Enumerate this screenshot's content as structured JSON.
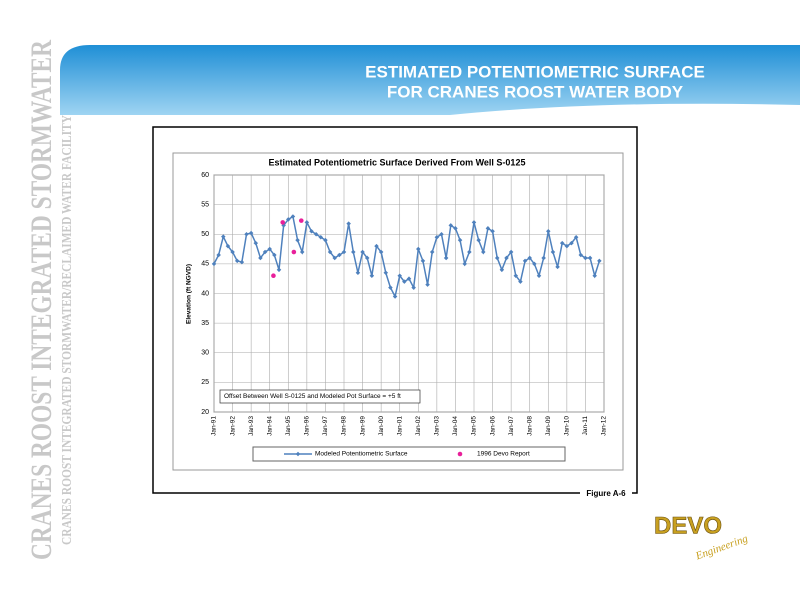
{
  "header": {
    "title_line1": "ESTIMATED POTENTIOMETRIC SURFACE",
    "title_line2": "FOR CRANES ROOST WATER BODY"
  },
  "sidebar": {
    "main": "CRANES ROOST INTEGRATED STORMWATER",
    "sub": "CRANES ROOST INTEGRATED STORMWATER/RECLAIMED WATER FACILITY"
  },
  "figure_label": "Figure A-6",
  "logo": {
    "name": "DEVO",
    "tagline": "Engineering"
  },
  "chart_data": {
    "type": "line",
    "title": "Estimated Potentiometric Surface Derived From Well S-0125",
    "y_label": "Elevation (ft NGVD)",
    "annotation": "Offset Between Well S-0125 and Modeled Pot Surface =  +5 ft",
    "xlim": [
      1991,
      2012
    ],
    "xticks": [
      {
        "value": 1991,
        "label": "Jan-91"
      },
      {
        "value": 1992,
        "label": "Jan-92"
      },
      {
        "value": 1993,
        "label": "Jan-93"
      },
      {
        "value": 1994,
        "label": "Jan-94"
      },
      {
        "value": 1995,
        "label": "Jan-95"
      },
      {
        "value": 1996,
        "label": "Jan-96"
      },
      {
        "value": 1997,
        "label": "Jan-97"
      },
      {
        "value": 1998,
        "label": "Jan-98"
      },
      {
        "value": 1999,
        "label": "Jan-99"
      },
      {
        "value": 2000,
        "label": "Jan-00"
      },
      {
        "value": 2001,
        "label": "Jan-01"
      },
      {
        "value": 2002,
        "label": "Jan-02"
      },
      {
        "value": 2003,
        "label": "Jan-03"
      },
      {
        "value": 2004,
        "label": "Jan-04"
      },
      {
        "value": 2005,
        "label": "Jan-05"
      },
      {
        "value": 2006,
        "label": "Jan-06"
      },
      {
        "value": 2007,
        "label": "Jan-07"
      },
      {
        "value": 2008,
        "label": "Jan-08"
      },
      {
        "value": 2009,
        "label": "Jan-09"
      },
      {
        "value": 2010,
        "label": "Jan-10"
      },
      {
        "value": 2011,
        "label": "Jan-11"
      },
      {
        "value": 2012,
        "label": "Jan-12"
      }
    ],
    "ylim": [
      20,
      60
    ],
    "yticks": [
      20,
      25,
      30,
      35,
      40,
      45,
      50,
      55,
      60
    ],
    "grid": true,
    "series": [
      {
        "name": "Modeled Potentiometric Surface",
        "color": "#4f81bd",
        "style": "line-marker",
        "x": [
          1991,
          1991.25,
          1991.5,
          1991.75,
          1992,
          1992.25,
          1992.5,
          1992.75,
          1993,
          1993.25,
          1993.5,
          1993.75,
          1994,
          1994.25,
          1994.5,
          1994.75,
          1995,
          1995.25,
          1995.5,
          1995.75,
          1996,
          1996.25,
          1996.5,
          1996.75,
          1997,
          1997.25,
          1997.5,
          1997.75,
          1998,
          1998.25,
          1998.5,
          1998.75,
          1999,
          1999.25,
          1999.5,
          1999.75,
          2000,
          2000.25,
          2000.5,
          2000.75,
          2001,
          2001.25,
          2001.5,
          2001.75,
          2002,
          2002.25,
          2002.5,
          2002.75,
          2003,
          2003.25,
          2003.5,
          2003.75,
          2004,
          2004.25,
          2004.5,
          2004.75,
          2005,
          2005.25,
          2005.5,
          2005.75,
          2006,
          2006.25,
          2006.5,
          2006.75,
          2007,
          2007.25,
          2007.5,
          2007.75,
          2008,
          2008.25,
          2008.5,
          2008.75,
          2009,
          2009.25,
          2009.5,
          2009.75,
          2010,
          2010.25,
          2010.5,
          2010.75,
          2011,
          2011.25,
          2011.5,
          2011.75
        ],
        "values": [
          45,
          46.5,
          49.6,
          48,
          47,
          45.5,
          45.3,
          50,
          50.2,
          48.5,
          46,
          47,
          47.5,
          46.5,
          44,
          51.5,
          52.5,
          53,
          49,
          47,
          52,
          50.5,
          50,
          49.5,
          49,
          47,
          46,
          46.5,
          47,
          51.8,
          47,
          43.5,
          47,
          46,
          43,
          48,
          47,
          43.5,
          41,
          39.5,
          43,
          42,
          42.5,
          41,
          47.5,
          45.5,
          41.5,
          47,
          49.5,
          50,
          46,
          51.5,
          51,
          49,
          45,
          47,
          52,
          49,
          47,
          51,
          50.5,
          46,
          44,
          46,
          47,
          43,
          42,
          45.5,
          46,
          45,
          43,
          46,
          50.5,
          47,
          44.5,
          48.5,
          48,
          48.5,
          49.5,
          46.5,
          46,
          46,
          43,
          45.5
        ]
      },
      {
        "name": "1996 Devo Report",
        "color": "#e8209a",
        "style": "marker",
        "x": [
          1994.2,
          1994.7,
          1995.3,
          1995.7
        ],
        "values": [
          43,
          52,
          47,
          52.3
        ]
      }
    ]
  }
}
